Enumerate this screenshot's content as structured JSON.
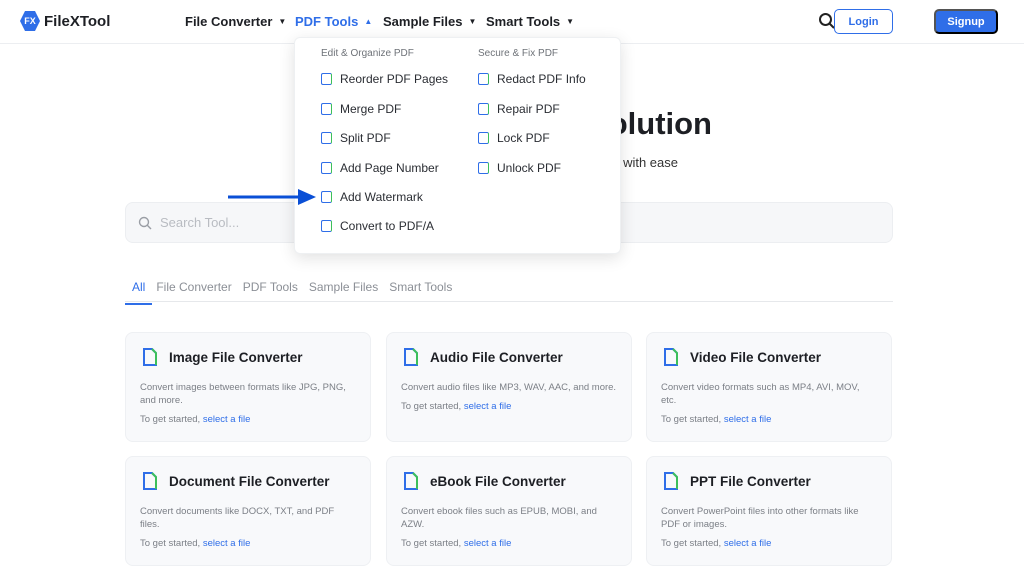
{
  "header": {
    "logo_mark": "FX",
    "logo_text": "FileXTool",
    "nav": [
      {
        "label": "File Converter",
        "caret": "▼"
      },
      {
        "label": "PDF Tools",
        "caret": "▲"
      },
      {
        "label": "Sample Files",
        "caret": "▼"
      },
      {
        "label": "Smart Tools",
        "caret": "▼"
      }
    ],
    "login": "Login",
    "signup": "Signup"
  },
  "dropdown": {
    "col1_heading": "Edit & Organize PDF",
    "col1": [
      "Reorder PDF Pages",
      "Merge PDF",
      "Split PDF",
      "Add Page Number",
      "Add Watermark",
      "Convert to PDF/A"
    ],
    "col2_heading": "Secure & Fix PDF",
    "col2": [
      "Redact PDF Info",
      "Repair PDF",
      "Lock PDF",
      "Unlock PDF"
    ],
    "highlighted": "Add Watermark"
  },
  "hero": {
    "title_visible": "olution",
    "subtitle_visible": "with ease"
  },
  "search": {
    "placeholder": "Search Tool..."
  },
  "tabs": [
    "All",
    "File Converter",
    "PDF Tools",
    "Sample Files",
    "Smart Tools"
  ],
  "cards": [
    {
      "title": "Image File Converter",
      "desc": "Convert images between formats like JPG, PNG, and more.",
      "prefix": "To get started,",
      "link": "select a file"
    },
    {
      "title": "Audio File Converter",
      "desc": "Convert audio files like MP3, WAV, AAC, and more.",
      "prefix": "To get started,",
      "link": "select a file"
    },
    {
      "title": "Video File Converter",
      "desc": "Convert video formats such as MP4, AVI, MOV, etc.",
      "prefix": "To get started,",
      "link": "select a file"
    },
    {
      "title": "Document File Converter",
      "desc": "Convert documents like DOCX, TXT, and PDF files.",
      "prefix": "To get started,",
      "link": "select a file"
    },
    {
      "title": "eBook File Converter",
      "desc": "Convert ebook files such as EPUB, MOBI, and AZW.",
      "prefix": "To get started,",
      "link": "select a file"
    },
    {
      "title": "PPT File Converter",
      "desc": "Convert PowerPoint files into other formats like PDF or images.",
      "prefix": "To get started,",
      "link": "select a file"
    }
  ],
  "colors": {
    "accent": "#2f6ee8",
    "icon_green": "#3cbf5b",
    "arrow": "#0a4fd6"
  }
}
